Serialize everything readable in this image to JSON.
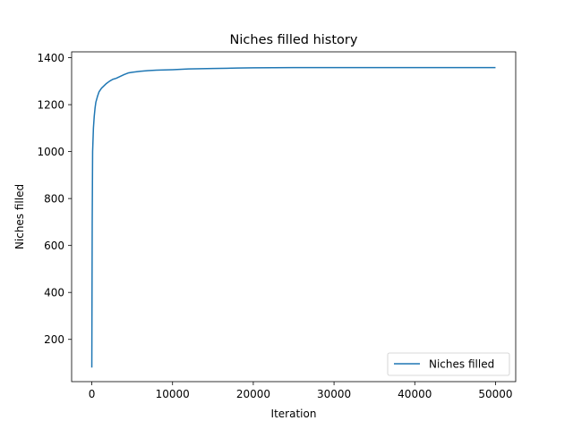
{
  "chart_data": {
    "type": "line",
    "title": "Niches filled history",
    "xlabel": "Iteration",
    "ylabel": "Niches filled",
    "xlim": [
      -2500,
      52500
    ],
    "ylim": [
      20,
      1425
    ],
    "xticks": [
      0,
      10000,
      20000,
      30000,
      40000,
      50000
    ],
    "xtick_labels": [
      "0",
      "10000",
      "20000",
      "30000",
      "40000",
      "50000"
    ],
    "yticks": [
      200,
      400,
      600,
      800,
      1000,
      1200,
      1400
    ],
    "ytick_labels": [
      "200",
      "400",
      "600",
      "800",
      "1000",
      "1200",
      "1400"
    ],
    "grid": false,
    "legend_position": "lower-right",
    "series": [
      {
        "name": "Niches filled",
        "color": "#1f77b4",
        "x": [
          0,
          50,
          100,
          200,
          300,
          400,
          500,
          700,
          900,
          1200,
          1500,
          1800,
          2200,
          2600,
          3000,
          3500,
          4000,
          4500,
          5000,
          6000,
          7000,
          8000,
          10000,
          12000,
          15000,
          18000,
          20000,
          25000,
          30000,
          35000,
          40000,
          45000,
          50000
        ],
        "y": [
          80,
          700,
          1000,
          1100,
          1150,
          1185,
          1210,
          1235,
          1255,
          1270,
          1280,
          1290,
          1300,
          1308,
          1312,
          1320,
          1328,
          1335,
          1338,
          1342,
          1345,
          1347,
          1349,
          1352,
          1354,
          1356,
          1357,
          1358,
          1358,
          1358,
          1358,
          1358,
          1358
        ]
      }
    ]
  }
}
